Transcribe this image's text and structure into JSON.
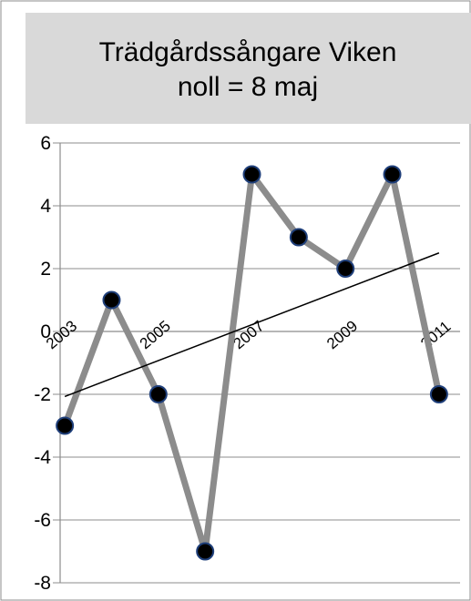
{
  "chart_data": {
    "type": "line",
    "title_lines": [
      "Trädgårdssångare Viken",
      "noll = 8 maj"
    ],
    "x": [
      2003,
      2004,
      2005,
      2006,
      2007,
      2008,
      2009,
      2010,
      2011
    ],
    "x_tick_labels": [
      "2003",
      "2005",
      "2007",
      "2009",
      "2011"
    ],
    "series": [
      {
        "values": [
          -3,
          1,
          -2,
          -7,
          5,
          3,
          2,
          5,
          -2
        ]
      }
    ],
    "trendline": {
      "type": "linear",
      "from": {
        "x": 2003,
        "y": -2.07
      },
      "to": {
        "x": 2011,
        "y": 2.5
      }
    },
    "y_ticks": [
      "6",
      "4",
      "2",
      "0",
      "-2",
      "-4",
      "-6",
      "-8"
    ],
    "ylim": [
      -8,
      6
    ],
    "grid": "horizontal",
    "legend": "none",
    "colors": {
      "title_background": "#d9d9d9",
      "line": "#8c8c8c",
      "marker_fill": "#000000",
      "marker_edge": "#1f3f7a",
      "trendline": "#000000",
      "gridline": "#8c8c8c",
      "frame": "#8c8c8c"
    }
  }
}
